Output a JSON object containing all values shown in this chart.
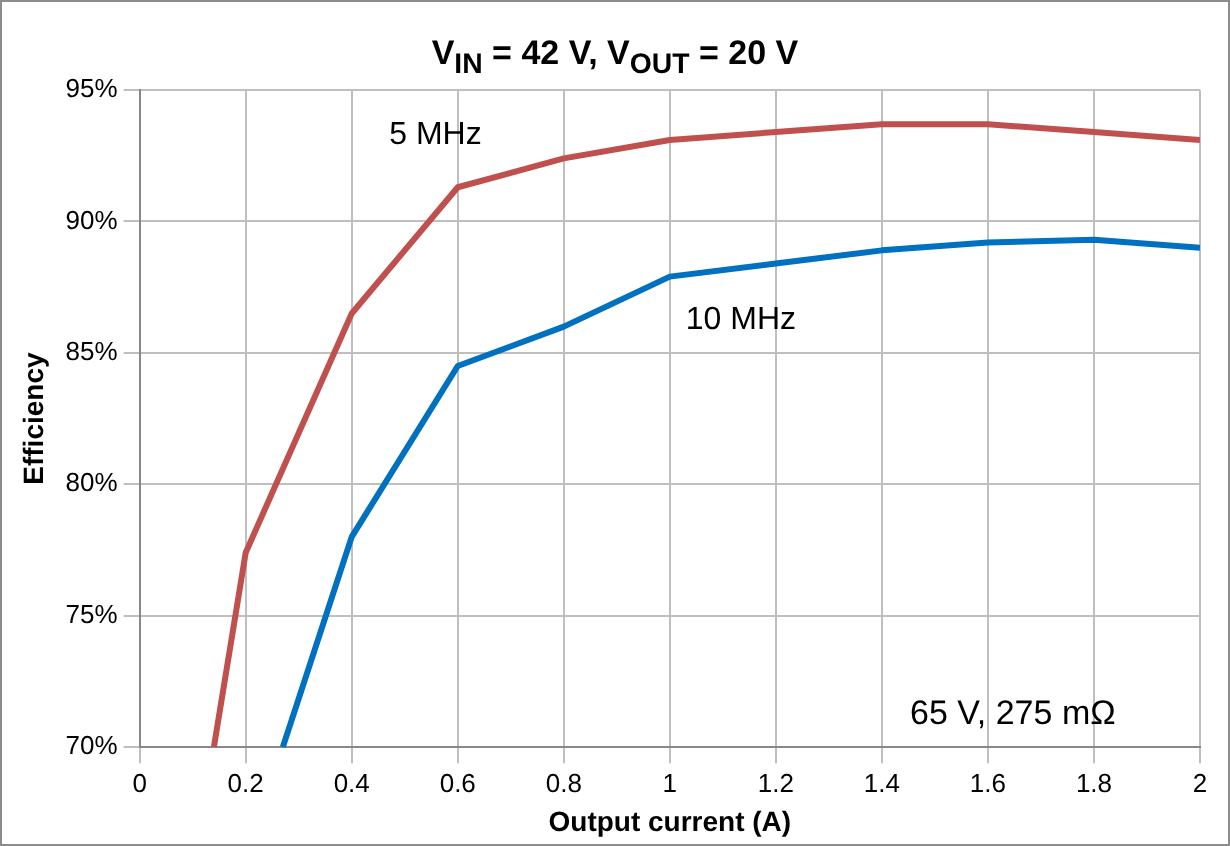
{
  "chart_data": {
    "type": "line",
    "title": "V$_{IN}$ = 42 V, V$_{OUT}$  = 20 V",
    "xlabel": "Output current (A)",
    "ylabel": "Efficiency",
    "xlim": [
      0,
      2
    ],
    "xticks": [
      0,
      0.2,
      0.4,
      0.6,
      0.8,
      1,
      1.2,
      1.4,
      1.6,
      1.8,
      2
    ],
    "ylim": [
      70,
      95
    ],
    "yticks": [
      {
        "value": 70,
        "label": "70%"
      },
      {
        "value": 75,
        "label": "75%"
      },
      {
        "value": 80,
        "label": "80%"
      },
      {
        "value": 85,
        "label": "85%"
      },
      {
        "value": 90,
        "label": "90%"
      },
      {
        "value": 95,
        "label": "95%"
      }
    ],
    "grid": true,
    "legend": false,
    "marker": "none",
    "line_style": "solid",
    "series": [
      {
        "name": "5 MHz",
        "color": "#c0504d",
        "x": [
          0.14,
          0.2,
          0.4,
          0.6,
          0.8,
          1,
          1.2,
          1.4,
          1.6,
          1.8,
          2
        ],
        "values": [
          70,
          77.4,
          86.5,
          91.3,
          92.4,
          93.1,
          93.4,
          93.7,
          93.7,
          93.4,
          93.1
        ]
      },
      {
        "name": "10 MHz",
        "color": "#0070c0",
        "x": [
          0.27,
          0.4,
          0.6,
          0.8,
          1,
          1.2,
          1.4,
          1.6,
          1.8,
          2
        ],
        "values": [
          70,
          78,
          84.5,
          86,
          87.9,
          88.4,
          88.9,
          89.2,
          89.3,
          89
        ]
      }
    ],
    "annotations": [
      "65 V, 275 mΩ"
    ]
  }
}
